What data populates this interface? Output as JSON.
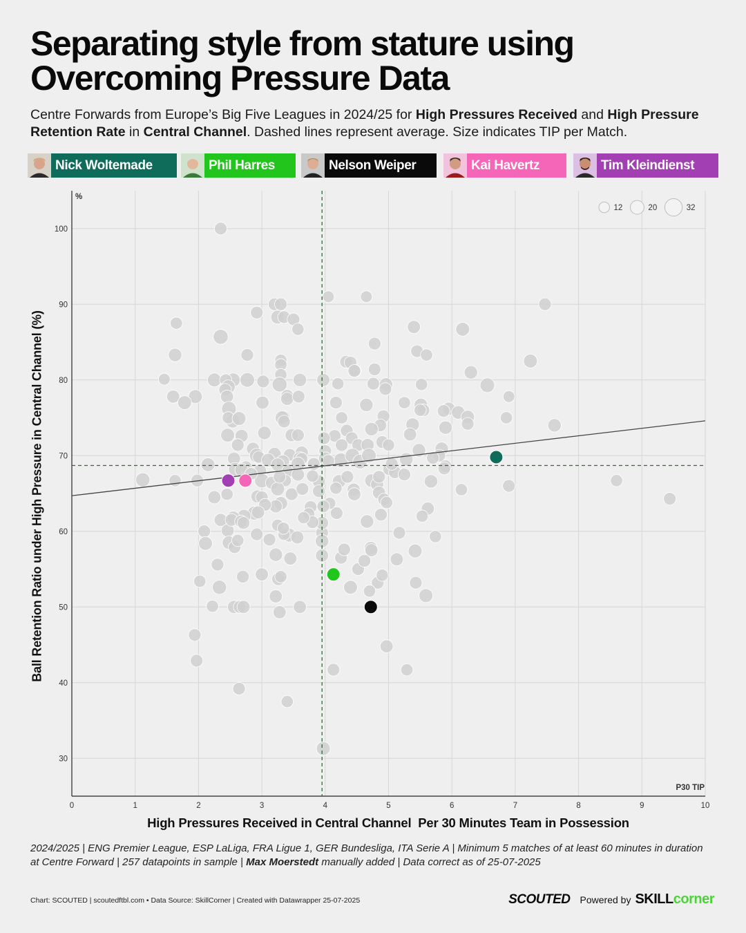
{
  "title_line1": "Separating style from stature using",
  "title_line2": "Overcoming Pressure Data",
  "subtitle": {
    "p1": "Centre Forwards from Europe’s Big Five Leagues in 2024/25 for ",
    "b1": "High Pressures Received",
    "p2": " and ",
    "b2": "High Pressure Retention Rate",
    "p3": " in ",
    "b3": "Central Channel",
    "p4": ". Dashed lines represent average. Size indicates TIP per Match."
  },
  "players": [
    {
      "name": "Nick Woltemade",
      "color": "#0f6b5a"
    },
    {
      "name": "Phil Harres",
      "color": "#22c51b"
    },
    {
      "name": "Nelson Weiper",
      "color": "#0a0a0a"
    },
    {
      "name": "Kai Havertz",
      "color": "#f565b8"
    },
    {
      "name": "Tim Kleindienst",
      "color": "#a23fb2"
    }
  ],
  "notes": {
    "line1": "2024/2025 | ENG Premier League, ESP LaLiga, FRA Ligue 1, GER Bundesliga, ITA Serie A | Minimum 5 matches of at least 60 minutes in duration",
    "line2a": "at Centre Forward | 257 datapoints in sample | ",
    "line2b": "Max Moerstedt",
    "line2c": " manually added | Data correct as of 25-07-2025"
  },
  "credits": "Chart: SCOUTED | scoutedftbl.com • Data Source: SkillCorner | Created with Datawrapper 25-07-2025",
  "brand": {
    "scouted": "SCOUTED",
    "powered": "Powered by",
    "skill": "SKILL",
    "corner": "corner"
  },
  "chart_data": {
    "type": "scatter",
    "xlabel": "High Pressures Received in Central Channel  Per 30 Minutes Team in Possession",
    "ylabel": "Ball Retention Ratio under High Pressure in Central Channel (%)",
    "y_unit": "%",
    "x_corner_label": "P30 TIP",
    "xlim": [
      0,
      10
    ],
    "ylim": [
      25,
      105
    ],
    "xticks": [
      0,
      1,
      2,
      3,
      4,
      5,
      6,
      7,
      8,
      9,
      10
    ],
    "yticks": [
      30,
      40,
      50,
      60,
      70,
      80,
      90,
      100
    ],
    "avg_x": 3.95,
    "avg_y": 68.7,
    "trend_line": {
      "x": [
        0,
        10
      ],
      "y": [
        64.7,
        74.6
      ]
    },
    "size_legend": {
      "title": "TIP per Match",
      "values": [
        12,
        20,
        32
      ]
    },
    "highlighted": [
      {
        "name": "Nick Woltemade",
        "x": 6.7,
        "y": 69.8,
        "color": "#0f6b5a"
      },
      {
        "name": "Phil Harres",
        "x": 4.13,
        "y": 54.3,
        "color": "#22c51b"
      },
      {
        "name": "Nelson Weiper",
        "x": 4.72,
        "y": 50.0,
        "color": "#0a0a0a"
      },
      {
        "name": "Kai Havertz",
        "x": 2.74,
        "y": 66.7,
        "color": "#f565b8"
      },
      {
        "name": "Tim Kleindienst",
        "x": 2.47,
        "y": 66.7,
        "color": "#a23fb2"
      }
    ],
    "points": [
      [
        2.35,
        100,
        15
      ],
      [
        4.05,
        91,
        13
      ],
      [
        4.65,
        91,
        13
      ],
      [
        7.47,
        90,
        15
      ],
      [
        3.2,
        90,
        15
      ],
      [
        3.3,
        90,
        15
      ],
      [
        3.25,
        88.3,
        18
      ],
      [
        3.35,
        88.3,
        15
      ],
      [
        3.5,
        88,
        15
      ],
      [
        3.57,
        86.7,
        14
      ],
      [
        2.92,
        88.9,
        15
      ],
      [
        1.65,
        87.5,
        14
      ],
      [
        5.4,
        87,
        16
      ],
      [
        6.17,
        86.7,
        18
      ],
      [
        2.35,
        85.7,
        21
      ],
      [
        4.78,
        84.8,
        15
      ],
      [
        1.63,
        83.3,
        17
      ],
      [
        2.77,
        83.3,
        15
      ],
      [
        5.45,
        83.8,
        15
      ],
      [
        5.6,
        83.3,
        14
      ],
      [
        3.3,
        82.6,
        14
      ],
      [
        7.24,
        82.5,
        18
      ],
      [
        4.33,
        82.4,
        15
      ],
      [
        4.4,
        82.3,
        15
      ],
      [
        3.3,
        82,
        14
      ],
      [
        4.47,
        81.2,
        15
      ],
      [
        4.78,
        81.4,
        15
      ],
      [
        6.3,
        81,
        17
      ],
      [
        4.46,
        81.2,
        15
      ],
      [
        3.3,
        80.7,
        14
      ],
      [
        1.46,
        80.1,
        13
      ],
      [
        2.25,
        80,
        18
      ],
      [
        2.55,
        80,
        18
      ],
      [
        2.43,
        80,
        14
      ],
      [
        2.77,
        80,
        20
      ],
      [
        3.02,
        79.8,
        15
      ],
      [
        3.28,
        79.4,
        21
      ],
      [
        3.6,
        80,
        17
      ],
      [
        3.97,
        80,
        16
      ],
      [
        4.2,
        79.5,
        14
      ],
      [
        4.76,
        79.5,
        15
      ],
      [
        4.96,
        79.4,
        17
      ],
      [
        4.95,
        78.8,
        15
      ],
      [
        5.52,
        79.4,
        14
      ],
      [
        6.56,
        79.3,
        20
      ],
      [
        6.9,
        77.8,
        13
      ],
      [
        2.47,
        79.1,
        18
      ],
      [
        2.42,
        78.7,
        15
      ],
      [
        2.45,
        77.8,
        16
      ],
      [
        1.6,
        77.8,
        16
      ],
      [
        1.95,
        77.8,
        18
      ],
      [
        3.4,
        77.9,
        15
      ],
      [
        3.4,
        77.5,
        16
      ],
      [
        3.58,
        77.8,
        15
      ],
      [
        4.17,
        77,
        15
      ],
      [
        4.65,
        76.7,
        17
      ],
      [
        5.25,
        77,
        14
      ],
      [
        5.51,
        76.7,
        17
      ],
      [
        1.78,
        77,
        18
      ],
      [
        3.01,
        77,
        16
      ],
      [
        2.48,
        76.2,
        20
      ],
      [
        2.54,
        74.6,
        19
      ],
      [
        2.47,
        75,
        14
      ],
      [
        2.64,
        74.9,
        18
      ],
      [
        3.35,
        75.1,
        14
      ],
      [
        3.32,
        75,
        18
      ],
      [
        3.35,
        74.5,
        15
      ],
      [
        4.26,
        75,
        14
      ],
      [
        4.92,
        75.2,
        15
      ],
      [
        4.87,
        74,
        15
      ],
      [
        5.38,
        74.1,
        17
      ],
      [
        5.55,
        76,
        15
      ],
      [
        5.95,
        76.2,
        16
      ],
      [
        6.1,
        75.7,
        17
      ],
      [
        6.25,
        75.1,
        17
      ],
      [
        6.86,
        75,
        14
      ],
      [
        7.62,
        74,
        17
      ],
      [
        5.87,
        75.9,
        15
      ],
      [
        5.5,
        76,
        14
      ],
      [
        4.34,
        73.3,
        15
      ],
      [
        4.42,
        72.3,
        15
      ],
      [
        4.15,
        72.6,
        15
      ],
      [
        3.98,
        72.3,
        15
      ],
      [
        3.47,
        72.7,
        16
      ],
      [
        2.68,
        72.6,
        16
      ],
      [
        2.46,
        72.7,
        18
      ],
      [
        3.04,
        73,
        17
      ],
      [
        3.57,
        72.7,
        15
      ],
      [
        4.73,
        73.5,
        17
      ],
      [
        4.9,
        71.8,
        15
      ],
      [
        5.0,
        71.4,
        14
      ],
      [
        5.34,
        72.8,
        16
      ],
      [
        6.25,
        74.2,
        15
      ],
      [
        5.9,
        73.7,
        17
      ],
      [
        2.62,
        71.4,
        15
      ],
      [
        2.86,
        70.9,
        16
      ],
      [
        3.2,
        70.2,
        17
      ],
      [
        3.44,
        70.1,
        15
      ],
      [
        3.63,
        70.4,
        16
      ],
      [
        4.0,
        70.6,
        15
      ],
      [
        4.26,
        71.4,
        15
      ],
      [
        4.52,
        71.4,
        15
      ],
      [
        4.67,
        71.4,
        16
      ],
      [
        5.48,
        70.7,
        17
      ],
      [
        5.84,
        70.9,
        17
      ],
      [
        5.8,
        70,
        15
      ],
      [
        2.92,
        70,
        20
      ],
      [
        2.95,
        69.8,
        14
      ],
      [
        3.1,
        69.4,
        17
      ],
      [
        3.33,
        69.2,
        17
      ],
      [
        3.6,
        69.6,
        18
      ],
      [
        3.63,
        69.6,
        14
      ],
      [
        4.0,
        69.6,
        17
      ],
      [
        4.25,
        69.4,
        20
      ],
      [
        4.43,
        70.0,
        20
      ],
      [
        4.55,
        69.2,
        20
      ],
      [
        4.69,
        70.0,
        20
      ],
      [
        5.28,
        69.5,
        17
      ],
      [
        5.7,
        69.7,
        15
      ],
      [
        2.15,
        68.8,
        18
      ],
      [
        2.56,
        69.6,
        16
      ],
      [
        2.75,
        68.5,
        14
      ],
      [
        2.58,
        68.2,
        17
      ],
      [
        2.68,
        68.1,
        17
      ],
      [
        2.97,
        68,
        16
      ],
      [
        3.25,
        68.8,
        17
      ],
      [
        3.42,
        68,
        16
      ],
      [
        3.57,
        68.9,
        18
      ],
      [
        3.82,
        68.9,
        15
      ],
      [
        4.05,
        69.3,
        15
      ],
      [
        5.01,
        68.2,
        15
      ],
      [
        5.1,
        67.8,
        15
      ],
      [
        5.25,
        67.5,
        15
      ],
      [
        5.05,
        68.9,
        15
      ],
      [
        5.9,
        68.6,
        15
      ],
      [
        5.88,
        68.3,
        15
      ],
      [
        1.12,
        66.8,
        19
      ],
      [
        1.63,
        66.7,
        14
      ],
      [
        1.98,
        66.7,
        15
      ],
      [
        3.0,
        66.7,
        20
      ],
      [
        3.16,
        66.4,
        16
      ],
      [
        3.37,
        66.7,
        14
      ],
      [
        3.57,
        67.5,
        16
      ],
      [
        3.9,
        66.6,
        16
      ],
      [
        4.22,
        66.6,
        17
      ],
      [
        4.35,
        67.2,
        15
      ],
      [
        4.73,
        66.7,
        17
      ],
      [
        4.82,
        66.2,
        16
      ],
      [
        5.67,
        66.6,
        17
      ],
      [
        6.15,
        65.5,
        14
      ],
      [
        6.9,
        66,
        15
      ],
      [
        8.6,
        66.7,
        14
      ],
      [
        9.44,
        64.3,
        15
      ],
      [
        2.25,
        64.5,
        16
      ],
      [
        2.45,
        64.9,
        14
      ],
      [
        2.93,
        64.6,
        16
      ],
      [
        3.0,
        64.5,
        15
      ],
      [
        3.25,
        65.6,
        18
      ],
      [
        3.3,
        63.7,
        17
      ],
      [
        3.47,
        64.9,
        15
      ],
      [
        3.64,
        65.6,
        15
      ],
      [
        3.9,
        65.3,
        15
      ],
      [
        4.17,
        65.7,
        14
      ],
      [
        4.45,
        65.5,
        16
      ],
      [
        4.46,
        64.9,
        16
      ],
      [
        4.85,
        65.1,
        16
      ],
      [
        4.93,
        64.2,
        15
      ],
      [
        4.97,
        63.8,
        14
      ],
      [
        5.62,
        63,
        16
      ],
      [
        5.53,
        62,
        14
      ],
      [
        4.88,
        62.2,
        15
      ],
      [
        4.18,
        62.4,
        15
      ],
      [
        4.07,
        63.7,
        14
      ],
      [
        3.97,
        63.3,
        15
      ],
      [
        3.77,
        63.2,
        15
      ],
      [
        3.74,
        62.3,
        14
      ],
      [
        3.22,
        63.3,
        16
      ],
      [
        3.05,
        63.5,
        15
      ],
      [
        2.88,
        62.4,
        18
      ],
      [
        2.72,
        62.0,
        17
      ],
      [
        2.55,
        61.8,
        16
      ],
      [
        2.35,
        61.5,
        16
      ],
      [
        2.46,
        60.1,
        16
      ],
      [
        2.52,
        61.5,
        15
      ],
      [
        2.67,
        61.3,
        15
      ],
      [
        2.09,
        60.0,
        15
      ],
      [
        2.48,
        58.5,
        17
      ],
      [
        2.57,
        57.9,
        15
      ],
      [
        2.62,
        58.8,
        14
      ],
      [
        2.11,
        58.4,
        18
      ],
      [
        2.92,
        59.6,
        15
      ],
      [
        3.12,
        58.9,
        15
      ],
      [
        3.43,
        59.5,
        18
      ],
      [
        3.56,
        59.2,
        16
      ],
      [
        3.35,
        59.6,
        14
      ],
      [
        3.95,
        59.8,
        15
      ],
      [
        3.95,
        58.7,
        17
      ],
      [
        3.95,
        61.1,
        16
      ],
      [
        4.66,
        61.3,
        17
      ],
      [
        5.17,
        59.8,
        15
      ],
      [
        5.74,
        59.3,
        14
      ],
      [
        3.25,
        60.8,
        14
      ],
      [
        3.34,
        60.4,
        14
      ],
      [
        3.8,
        61.2,
        15
      ],
      [
        2.3,
        55.6,
        15
      ],
      [
        3.0,
        54.3,
        16
      ],
      [
        3.22,
        56.9,
        17
      ],
      [
        3.45,
        56.4,
        16
      ],
      [
        3.26,
        53.7,
        16
      ],
      [
        3.3,
        54.0,
        14
      ],
      [
        2.7,
        54,
        15
      ],
      [
        4.25,
        56.5,
        15
      ],
      [
        4.3,
        57.6,
        15
      ],
      [
        4.52,
        55,
        15
      ],
      [
        4.62,
        56.1,
        15
      ],
      [
        4.72,
        57.8,
        16
      ],
      [
        4.73,
        57.5,
        16
      ],
      [
        5.13,
        56.3,
        16
      ],
      [
        5.42,
        57.4,
        18
      ],
      [
        4.83,
        53.2,
        15
      ],
      [
        4.4,
        52.6,
        18
      ],
      [
        4.9,
        54.2,
        14
      ],
      [
        2.33,
        52.6,
        19
      ],
      [
        2.02,
        53.4,
        14
      ],
      [
        3.22,
        51.4,
        16
      ],
      [
        4.7,
        52.1,
        14
      ],
      [
        5.43,
        53.2,
        15
      ],
      [
        5.59,
        51.5,
        18
      ],
      [
        2.22,
        50.1,
        14
      ],
      [
        2.56,
        50,
        16
      ],
      [
        2.65,
        50,
        15
      ],
      [
        2.71,
        50,
        16
      ],
      [
        3.28,
        49.3,
        16
      ],
      [
        3.6,
        50,
        16
      ],
      [
        1.94,
        46.3,
        15
      ],
      [
        1.97,
        42.9,
        15
      ],
      [
        4.97,
        44.8,
        16
      ],
      [
        4.13,
        41.7,
        15
      ],
      [
        5.29,
        41.7,
        14
      ],
      [
        2.64,
        39.2,
        15
      ],
      [
        3.4,
        37.5,
        14
      ],
      [
        3.97,
        31.3,
        18
      ],
      [
        3.95,
        56.8,
        16
      ],
      [
        2.83,
        67.6,
        15
      ],
      [
        3.28,
        67.2,
        15
      ],
      [
        3.8,
        67.3,
        14
      ],
      [
        4.85,
        67.2,
        15
      ],
      [
        2.94,
        62.5,
        16
      ],
      [
        2.71,
        61.1,
        15
      ],
      [
        3.66,
        61.8,
        14
      ]
    ]
  }
}
